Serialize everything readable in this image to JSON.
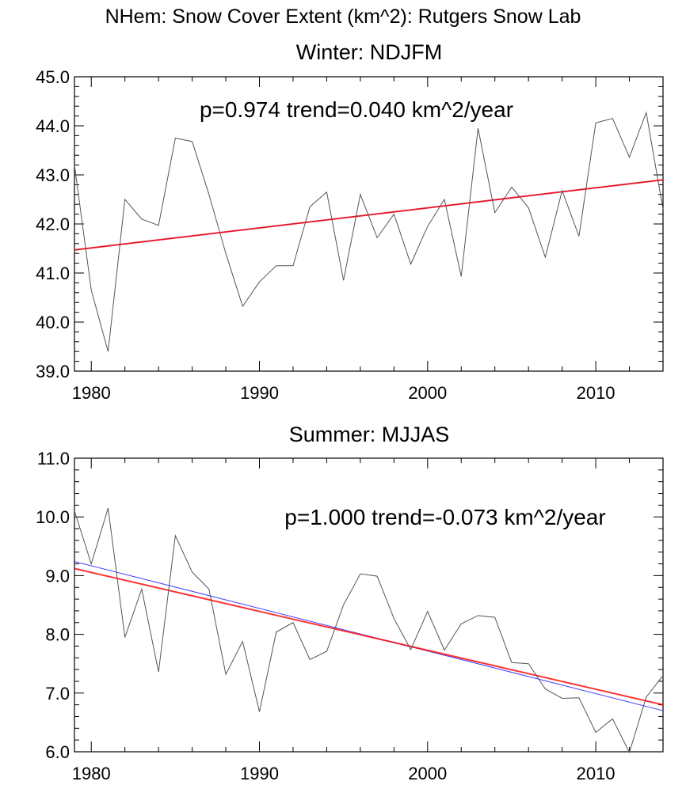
{
  "figure_title": "NHem: Snow Cover Extent (km^2): Rutgers Snow Lab",
  "colors": {
    "data_line": "#555555",
    "trend_red": "#ff0000",
    "trend_blue": "#0000ff",
    "frame": "#000000"
  },
  "chart_data": [
    {
      "type": "line",
      "title": "Winter: NDJFM",
      "annotation": "p=0.974  trend=0.040 km^2/year",
      "xlim": [
        1979,
        2014
      ],
      "ylim": [
        39.0,
        45.0
      ],
      "xticks": [
        1980,
        1990,
        2000,
        2010
      ],
      "xtick_labels": [
        "1980",
        "1990",
        "2000",
        "2010"
      ],
      "yticks": [
        39.0,
        40.0,
        41.0,
        42.0,
        43.0,
        44.0,
        45.0
      ],
      "ytick_labels": [
        "39.0",
        "40.0",
        "41.0",
        "42.0",
        "43.0",
        "44.0",
        "45.0"
      ],
      "x": [
        1979,
        1980,
        1981,
        1982,
        1983,
        1984,
        1985,
        1986,
        1987,
        1988,
        1989,
        1990,
        1991,
        1992,
        1993,
        1994,
        1995,
        1996,
        1997,
        1998,
        1999,
        2000,
        2001,
        2002,
        2003,
        2004,
        2005,
        2006,
        2007,
        2008,
        2009,
        2010,
        2011,
        2012,
        2013,
        2014
      ],
      "series": [
        {
          "name": "snow cover",
          "values": [
            43.2,
            40.65,
            39.4,
            42.5,
            42.1,
            41.97,
            43.75,
            43.68,
            42.6,
            41.4,
            40.32,
            40.82,
            41.15,
            41.15,
            42.35,
            42.65,
            40.85,
            42.6,
            41.72,
            42.2,
            41.18,
            41.95,
            42.5,
            40.93,
            43.95,
            42.23,
            42.75,
            42.33,
            41.32,
            42.68,
            41.75,
            44.06,
            44.15,
            43.36,
            44.27,
            42.3
          ]
        }
      ],
      "trend_lines": [
        {
          "name": "trend",
          "color": "red",
          "from": [
            1979,
            41.47
          ],
          "to": [
            2014,
            42.9
          ]
        },
        {
          "name": "fit",
          "color": "blue",
          "from": [
            1979,
            41.47
          ],
          "to": [
            2014,
            42.9
          ]
        }
      ]
    },
    {
      "type": "line",
      "title": "Summer: MJJAS",
      "annotation": "p=1.000  trend=-0.073 km^2/year",
      "xlim": [
        1979,
        2014
      ],
      "ylim": [
        6.0,
        11.0
      ],
      "xticks": [
        1980,
        1990,
        2000,
        2010
      ],
      "xtick_labels": [
        "1980",
        "1990",
        "2000",
        "2010"
      ],
      "yticks": [
        6.0,
        7.0,
        8.0,
        9.0,
        10.0,
        11.0
      ],
      "ytick_labels": [
        "6.0",
        "7.0",
        "8.0",
        "9.0",
        "10.0",
        "11.0"
      ],
      "x": [
        1979,
        1980,
        1981,
        1982,
        1983,
        1984,
        1985,
        1986,
        1987,
        1988,
        1989,
        1990,
        1991,
        1992,
        1993,
        1994,
        1995,
        1996,
        1997,
        1998,
        1999,
        2000,
        2001,
        2002,
        2003,
        2004,
        2005,
        2006,
        2007,
        2008,
        2009,
        2010,
        2011,
        2012,
        2013,
        2014
      ],
      "series": [
        {
          "name": "snow cover",
          "values": [
            10.1,
            9.2,
            10.15,
            7.95,
            8.77,
            7.36,
            9.68,
            9.06,
            8.77,
            7.32,
            7.88,
            6.68,
            8.04,
            8.2,
            7.57,
            7.71,
            8.5,
            9.03,
            8.99,
            8.27,
            7.74,
            8.39,
            7.73,
            8.18,
            8.32,
            8.29,
            7.52,
            7.5,
            7.07,
            6.91,
            6.92,
            6.33,
            6.56,
            5.99,
            6.93,
            7.3
          ]
        }
      ],
      "trend_lines": [
        {
          "name": "trend",
          "color": "red",
          "from": [
            1979,
            9.12
          ],
          "to": [
            2014,
            6.8
          ]
        },
        {
          "name": "fit",
          "color": "blue",
          "from": [
            1979,
            9.24
          ],
          "to": [
            2014,
            6.7
          ]
        }
      ]
    }
  ]
}
